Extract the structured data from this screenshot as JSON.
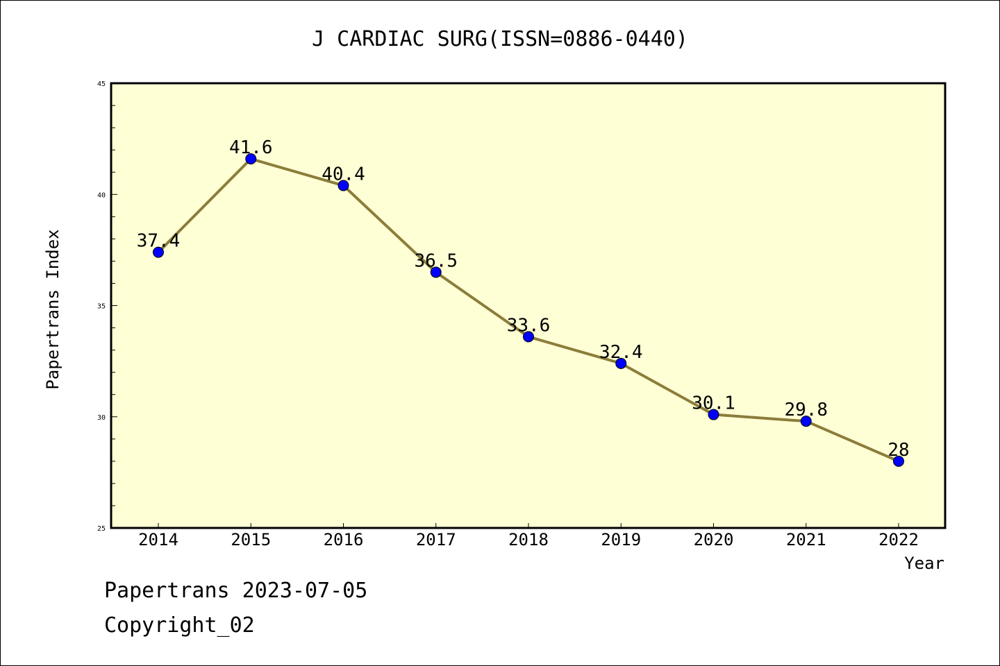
{
  "chart_data": {
    "type": "line",
    "title": "J CARDIAC SURG(ISSN=0886-0440)",
    "xlabel": "Year",
    "ylabel": "Papertrans Index",
    "categories": [
      "2014",
      "2015",
      "2016",
      "2017",
      "2018",
      "2019",
      "2020",
      "2021",
      "2022"
    ],
    "series": [
      {
        "values": [
          37.4,
          41.6,
          40.4,
          36.5,
          33.6,
          32.4,
          30.1,
          29.8,
          28
        ],
        "labels": [
          "37.4",
          "41.6",
          "40.4",
          "36.5",
          "33.6",
          "32.4",
          "30.1",
          "29.8",
          "28"
        ],
        "line_color": "#8b7d3a",
        "marker_color": "#0000ff"
      }
    ],
    "ylim": [
      25,
      45
    ],
    "y_ticks": [
      "25",
      "30",
      "35",
      "40",
      "45"
    ],
    "grid": false,
    "plot_background": "#ffffd5"
  },
  "footer": {
    "date_line": "Papertrans 2023-07-05",
    "copyright_line": "Copyright_02"
  }
}
